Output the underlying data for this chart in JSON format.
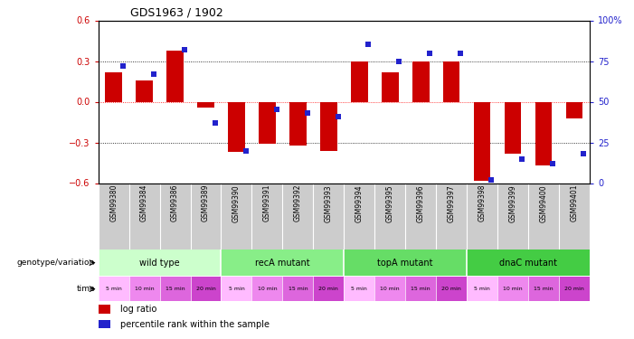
{
  "title": "GDS1963 / 1902",
  "samples": [
    "GSM99380",
    "GSM99384",
    "GSM99386",
    "GSM99389",
    "GSM99390",
    "GSM99391",
    "GSM99392",
    "GSM99393",
    "GSM99394",
    "GSM99395",
    "GSM99396",
    "GSM99397",
    "GSM99398",
    "GSM99399",
    "GSM99400",
    "GSM99401"
  ],
  "log_ratio": [
    0.22,
    0.16,
    0.38,
    -0.04,
    -0.37,
    -0.31,
    -0.32,
    -0.36,
    0.3,
    0.22,
    0.3,
    0.3,
    -0.58,
    -0.38,
    -0.47,
    -0.12
  ],
  "percentile": [
    72,
    67,
    82,
    37,
    20,
    45,
    43,
    41,
    85,
    75,
    80,
    80,
    2,
    15,
    12,
    18
  ],
  "groups": [
    {
      "label": "wild type",
      "start": 0,
      "end": 4,
      "color": "#ccffcc"
    },
    {
      "label": "recA mutant",
      "start": 4,
      "end": 8,
      "color": "#88ee88"
    },
    {
      "label": "topA mutant",
      "start": 8,
      "end": 12,
      "color": "#66dd66"
    },
    {
      "label": "dnaC mutant",
      "start": 12,
      "end": 16,
      "color": "#44cc44"
    }
  ],
  "time_labels": [
    "5 min",
    "10 min",
    "15 min",
    "20 min",
    "5 min",
    "10 min",
    "15 min",
    "20 min",
    "5 min",
    "10 min",
    "15 min",
    "20 min",
    "5 min",
    "10 min",
    "15 min",
    "20 min"
  ],
  "time_colors": [
    "#ffbbff",
    "#ee88ee",
    "#dd66dd",
    "#cc44cc",
    "#ffbbff",
    "#ee88ee",
    "#dd66dd",
    "#cc44cc",
    "#ffbbff",
    "#ee88ee",
    "#dd66dd",
    "#cc44cc",
    "#ffbbff",
    "#ee88ee",
    "#dd66dd",
    "#cc44cc"
  ],
  "ylim": [
    -0.6,
    0.6
  ],
  "yticks_left": [
    -0.6,
    -0.3,
    0.0,
    0.3,
    0.6
  ],
  "yticks_right": [
    0,
    25,
    50,
    75,
    100
  ],
  "bar_color": "#cc0000",
  "dot_color": "#2222cc",
  "background_color": "#ffffff",
  "ylabel_left_color": "#cc0000",
  "ylabel_right_color": "#2222cc",
  "names_bg": "#cccccc",
  "label_left_text_genotype": "genotype/variation",
  "label_left_text_time": "time"
}
